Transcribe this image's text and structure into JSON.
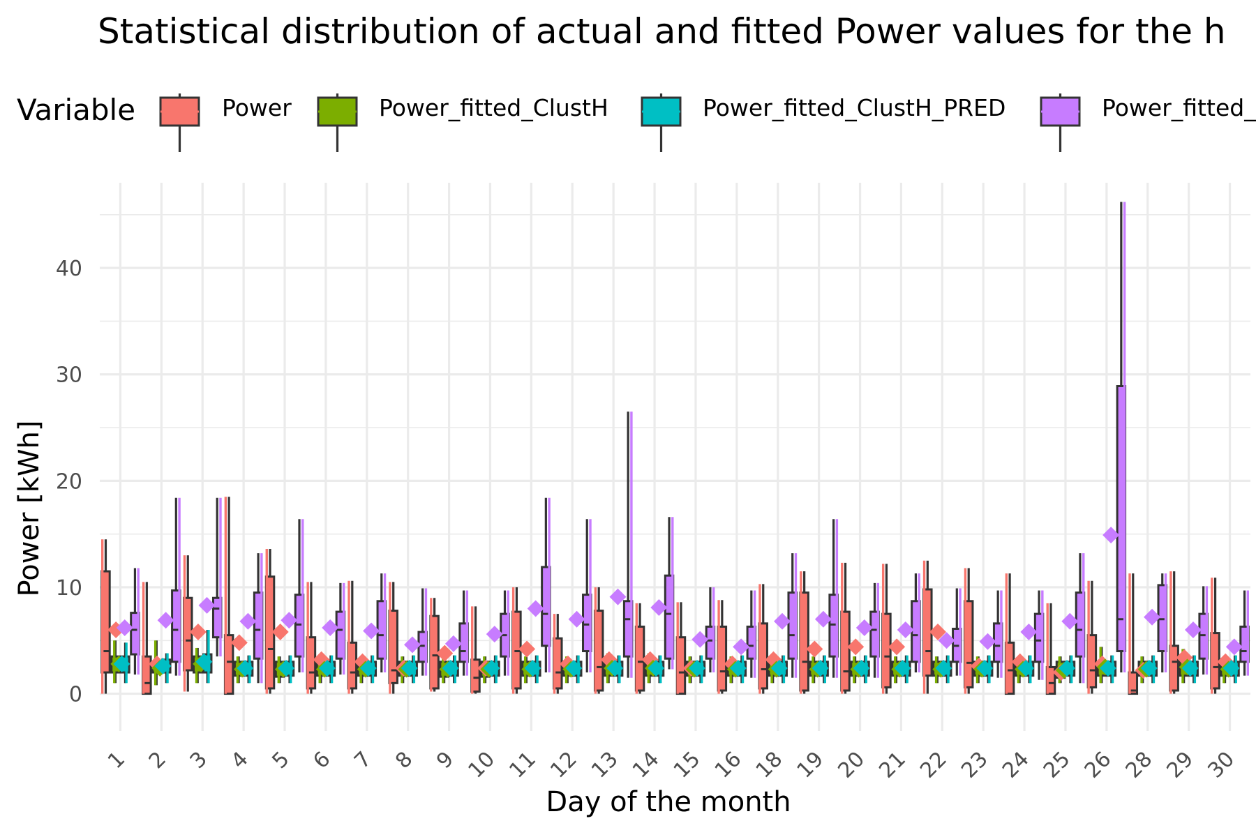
{
  "chart_data": {
    "type": "boxplot",
    "title": "Statistical distribution of actual and fitted Power values for the h",
    "xlabel": "Day of the month",
    "ylabel": "Power [kWh]",
    "legend": {
      "title": "Variable",
      "placement": "top"
    },
    "ylim": [
      -3.5,
      48
    ],
    "yticks": [
      0,
      10,
      20,
      30,
      40
    ],
    "grid": true,
    "categories": [
      "1",
      "2",
      "3",
      "4",
      "5",
      "6",
      "7",
      "8",
      "9",
      "10",
      "11",
      "12",
      "13",
      "14",
      "15",
      "16",
      "18",
      "19",
      "20",
      "21",
      "22",
      "23",
      "24",
      "25",
      "26",
      "28",
      "29",
      "30"
    ],
    "series": [
      {
        "name": "Power",
        "color": "#f8766d",
        "boxes": [
          [
            0,
            2,
            4,
            11.5,
            14.5
          ],
          [
            0,
            0,
            1,
            3.5,
            10.5
          ],
          [
            0.2,
            2.2,
            5,
            9,
            13
          ],
          [
            0,
            0,
            3,
            5.5,
            18.5
          ],
          [
            0,
            0.5,
            4.2,
            11,
            13.6
          ],
          [
            0,
            0.5,
            2,
            5.3,
            10.5
          ],
          [
            0,
            0.5,
            2,
            4.8,
            10.6
          ],
          [
            0,
            1,
            2.2,
            7.8,
            10.5
          ],
          [
            0.2,
            0.5,
            3.6,
            7.3,
            9
          ],
          [
            0,
            0.2,
            1.5,
            3.2,
            8.2
          ],
          [
            0,
            0.5,
            4,
            7.7,
            10
          ],
          [
            0,
            0.5,
            2,
            5.2,
            7.5
          ],
          [
            0,
            0.3,
            2.5,
            7.8,
            10
          ],
          [
            0,
            0.3,
            3,
            6.3,
            8.5
          ],
          [
            0,
            0,
            2,
            5.3,
            8.6
          ],
          [
            0,
            0.3,
            2.1,
            6.3,
            8.8
          ],
          [
            0,
            0.5,
            2.3,
            6.6,
            10.3
          ],
          [
            0,
            0.3,
            3,
            9.5,
            11.5
          ],
          [
            0,
            0.3,
            2.1,
            7.7,
            12.3
          ],
          [
            0,
            0.6,
            3.5,
            7.5,
            12.2
          ],
          [
            0,
            1.7,
            4,
            9.8,
            12.5
          ],
          [
            0,
            0.6,
            2.9,
            8.7,
            11.8
          ],
          [
            0,
            0,
            2.2,
            4.8,
            11.3
          ],
          [
            0,
            0,
            1,
            2.5,
            8.5
          ],
          [
            0,
            0.6,
            2.2,
            5.5,
            10.6
          ],
          [
            0,
            0,
            0.3,
            2,
            11.3
          ],
          [
            0,
            0.3,
            3,
            4.5,
            11.5
          ],
          [
            0,
            0.5,
            2.5,
            5.7,
            10.9
          ]
        ],
        "means": [
          6,
          2.8,
          5.8,
          4.8,
          5.8,
          3.2,
          3,
          2.4,
          3.8,
          2.4,
          4.2,
          2.8,
          3.2,
          3.2,
          2.4,
          2.8,
          3.2,
          4.2,
          4.4,
          4.4,
          5.8,
          2.6,
          3,
          2,
          2.8,
          2.2,
          3.4,
          3
        ]
      },
      {
        "name": "Power_fitted_ClustH",
        "color": "#7cae00",
        "boxes": [
          [
            1,
            2,
            2.8,
            3.5,
            5
          ],
          [
            0.8,
            2,
            2.5,
            3,
            5
          ],
          [
            1,
            2,
            2.9,
            3.5,
            4.3
          ],
          [
            1,
            1.7,
            2.3,
            3,
            3.5
          ],
          [
            1,
            1.6,
            2.3,
            3,
            3.5
          ],
          [
            1,
            1.7,
            2.3,
            3,
            3.5
          ],
          [
            1,
            1.7,
            2.3,
            3,
            3.5
          ],
          [
            1,
            1.7,
            2.3,
            3,
            3.5
          ],
          [
            1,
            1.6,
            2.2,
            3,
            3.5
          ],
          [
            1,
            1.6,
            2.2,
            3,
            3.5
          ],
          [
            1,
            1.7,
            2.3,
            3,
            3.5
          ],
          [
            1,
            1.7,
            2.3,
            3,
            3.5
          ],
          [
            1,
            1.7,
            2.4,
            3,
            3.8
          ],
          [
            1,
            1.7,
            2.4,
            3,
            3.8
          ],
          [
            1,
            1.7,
            2.3,
            3,
            3.5
          ],
          [
            1,
            1.7,
            2.3,
            3,
            3.5
          ],
          [
            1,
            1.7,
            2.3,
            3,
            3.5
          ],
          [
            1,
            1.7,
            2.3,
            3,
            3.5
          ],
          [
            1,
            1.7,
            2.3,
            3,
            3.5
          ],
          [
            1,
            1.7,
            2.3,
            3,
            3.5
          ],
          [
            1,
            1.7,
            2.3,
            3,
            3.5
          ],
          [
            1,
            1.7,
            2.3,
            3,
            3.5
          ],
          [
            1,
            1.7,
            2.3,
            3,
            3.5
          ],
          [
            1,
            1.5,
            2.2,
            3,
            3.5
          ],
          [
            1,
            1.7,
            2.5,
            3,
            4.4
          ],
          [
            1,
            1.7,
            2.3,
            3,
            3.5
          ],
          [
            1,
            1.7,
            2.5,
            3,
            4.2
          ],
          [
            1,
            1.7,
            2.3,
            3,
            3.5
          ]
        ],
        "means": [
          2.8,
          2.4,
          2.8,
          2.3,
          2.3,
          2.3,
          2.3,
          2.3,
          2.3,
          2.3,
          2.3,
          2.3,
          2.4,
          2.4,
          2.3,
          2.3,
          2.3,
          2.3,
          2.3,
          2.3,
          2.3,
          2.3,
          2.3,
          2.2,
          2.5,
          2.3,
          2.5,
          2.3
        ]
      },
      {
        "name": "Power_fitted_ClustH_PRED",
        "color": "#00bfc4",
        "boxes": [
          [
            1,
            2,
            2.8,
            3.5,
            4.8
          ],
          [
            1,
            2,
            2.6,
            3.2,
            3.8
          ],
          [
            1,
            2,
            3,
            3.7,
            6
          ],
          [
            1,
            1.7,
            2.3,
            3,
            3.6
          ],
          [
            1,
            1.7,
            2.3,
            3,
            3.6
          ],
          [
            1,
            1.7,
            2.3,
            3,
            3.6
          ],
          [
            1,
            1.7,
            2.3,
            3,
            3.6
          ],
          [
            1,
            1.7,
            2.3,
            3,
            3.6
          ],
          [
            1,
            1.7,
            2.3,
            3,
            3.6
          ],
          [
            1,
            1.7,
            2.3,
            3,
            3.6
          ],
          [
            1,
            1.7,
            2.3,
            3,
            3.6
          ],
          [
            1,
            1.7,
            2.3,
            3,
            3.6
          ],
          [
            1,
            1.7,
            2.4,
            3,
            3.6
          ],
          [
            1,
            1.7,
            2.3,
            3,
            3.6
          ],
          [
            1,
            1.7,
            2.3,
            3,
            3.6
          ],
          [
            1,
            1.7,
            2.3,
            3,
            3.6
          ],
          [
            1,
            1.7,
            2.3,
            3,
            3.6
          ],
          [
            1,
            1.7,
            2.3,
            3,
            3.6
          ],
          [
            1,
            1.7,
            2.3,
            3,
            3.6
          ],
          [
            1,
            1.7,
            2.3,
            3,
            3.6
          ],
          [
            1,
            1.7,
            2.3,
            3,
            3.6
          ],
          [
            1,
            1.7,
            2.3,
            3,
            3.6
          ],
          [
            1,
            1.7,
            2.3,
            3,
            3.6
          ],
          [
            1,
            1.7,
            2.3,
            3,
            3.6
          ],
          [
            1,
            1.7,
            2.3,
            3,
            3.6
          ],
          [
            1,
            1.7,
            2.3,
            3,
            3.6
          ],
          [
            1,
            1.7,
            2.3,
            3,
            3.6
          ],
          [
            1,
            1.7,
            2.3,
            3,
            3.6
          ]
        ],
        "means": [
          2.8,
          2.6,
          3,
          2.4,
          2.4,
          2.4,
          2.4,
          2.4,
          2.4,
          2.4,
          2.4,
          2.4,
          2.4,
          2.4,
          2.4,
          2.4,
          2.4,
          2.4,
          2.4,
          2.4,
          2.4,
          2.4,
          2.4,
          2.4,
          2.4,
          2.4,
          2.4,
          2.4
        ]
      },
      {
        "name": "Power_fitted_",
        "color": "#c77cff",
        "boxes": [
          [
            1.8,
            3.7,
            6,
            7.6,
            11.8
          ],
          [
            1.7,
            3,
            6,
            9.7,
            18.4
          ],
          [
            3.5,
            5.3,
            8,
            9,
            18.4
          ],
          [
            1,
            3.3,
            6,
            9.5,
            13.2
          ],
          [
            2,
            3.5,
            6.5,
            9.3,
            16.4
          ],
          [
            1.8,
            3.3,
            6,
            7.7,
            10.4
          ],
          [
            2,
            3.3,
            5.5,
            8.7,
            11.3
          ],
          [
            1.7,
            3,
            4.5,
            5.8,
            9.9
          ],
          [
            1.7,
            3,
            4,
            6.6,
            9.7
          ],
          [
            1.7,
            3.5,
            5.5,
            7.5,
            9.7
          ],
          [
            2,
            4.5,
            7.5,
            11.9,
            18.4
          ],
          [
            2,
            4,
            6.5,
            9.3,
            16.4
          ],
          [
            1.5,
            3.5,
            7,
            8.7,
            26.5
          ],
          [
            2.3,
            3.3,
            7.5,
            11.1,
            16.6
          ],
          [
            2,
            3.3,
            5,
            6.3,
            10
          ],
          [
            1.5,
            3.3,
            4.5,
            6.3,
            9.7
          ],
          [
            1.5,
            3.3,
            5.5,
            9.5,
            13.2
          ],
          [
            1.5,
            3.5,
            6.5,
            9.3,
            16.4
          ],
          [
            1.5,
            3.5,
            6,
            7.7,
            10.4
          ],
          [
            2,
            3,
            5.5,
            8.7,
            11.3
          ],
          [
            1.7,
            3,
            4.5,
            6.1,
            9.9
          ],
          [
            1.5,
            3,
            4.5,
            6.6,
            9.7
          ],
          [
            1.3,
            3,
            5,
            7.5,
            9.7
          ],
          [
            1,
            3.5,
            6,
            9.5,
            13.2
          ],
          [
            2,
            4,
            7,
            28.9,
            46.2
          ],
          [
            2,
            4,
            7,
            10.2,
            11.3
          ],
          [
            1.8,
            3.3,
            5.5,
            7.5,
            10.1
          ],
          [
            1.7,
            3,
            4,
            6.3,
            9.7
          ]
        ],
        "means": [
          6.2,
          6.9,
          8.3,
          6.8,
          6.9,
          6.2,
          5.9,
          4.6,
          4.7,
          5.6,
          8,
          7,
          9.1,
          8.1,
          5.1,
          4.4,
          6.8,
          7,
          6.2,
          6,
          5,
          4.9,
          5.8,
          6.8,
          14.9,
          7.2,
          6,
          4.4
        ]
      }
    ]
  }
}
